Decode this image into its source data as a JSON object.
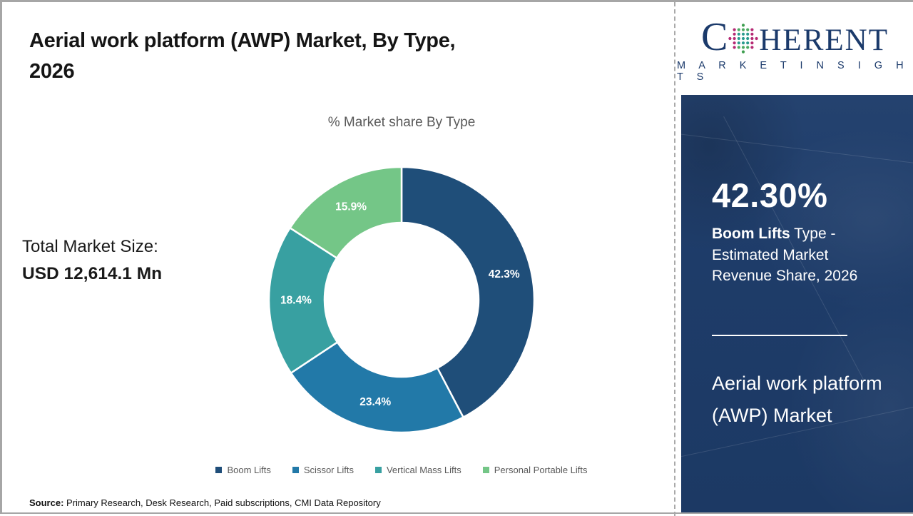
{
  "header": {
    "title_line1": "Aerial work platform (AWP) Market, By Type,",
    "title_line2": "2026"
  },
  "logo": {
    "letter_c": "C",
    "word_rest": "HERENT",
    "tagline": "M A R K E T   I N S I G H T S"
  },
  "left_stats": {
    "total_label": "Total Market Size:",
    "total_value": "USD 12,614.1 Mn"
  },
  "chart_data": {
    "type": "donut",
    "title": "% Market share By Type",
    "categories": [
      "Boom Lifts",
      "Scissor Lifts",
      "Vertical Mass Lifts",
      "Personal Portable Lifts"
    ],
    "values": [
      42.3,
      23.4,
      18.4,
      15.9
    ],
    "labels": [
      "42.3%",
      "23.4%",
      "18.4%",
      "15.9%"
    ],
    "colors": [
      "#1f4e79",
      "#2279a8",
      "#38a0a1",
      "#74c687"
    ],
    "start_angle_deg": 0,
    "direction": "clockwise",
    "legend_position": "bottom",
    "outer_radius": 186,
    "inner_radius": 108
  },
  "side_panel": {
    "stat_value": "42.30%",
    "stat_bold": "Boom Lifts",
    "stat_rest": " Type - Estimated Market Revenue Share, 2026",
    "panel_title": "Aerial work platform (AWP) Market",
    "background_color": "#1e3c69"
  },
  "footer": {
    "source_label": "Source:",
    "source_text": " Primary Research, Desk Research, Paid subscriptions, CMI Data Repository"
  }
}
